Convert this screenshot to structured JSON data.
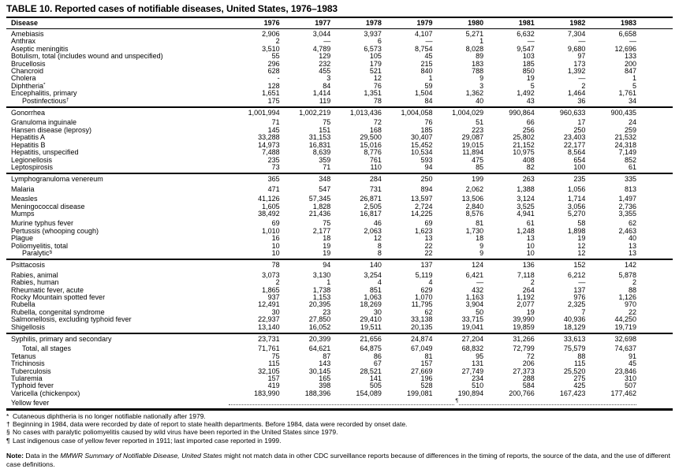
{
  "title": "TABLE 10. Reported cases of notifiable diseases, United States, 1976–1983",
  "table": {
    "columns": [
      "Disease",
      "1976",
      "1977",
      "1978",
      "1979",
      "1980",
      "1981",
      "1982",
      "1983"
    ],
    "groups": [
      {
        "rows": [
          {
            "name": "Amebiasis",
            "values": [
              "2,906",
              "3,044",
              "3,937",
              "4,107",
              "5,271",
              "6,632",
              "7,304",
              "6,658"
            ]
          },
          {
            "name": "Anthrax",
            "values": [
              "2",
              "—",
              "6",
              "—",
              "1",
              "—",
              "—",
              "—"
            ]
          },
          {
            "name": "Aseptic meningitis",
            "values": [
              "3,510",
              "4,789",
              "6,573",
              "8,754",
              "8,028",
              "9,547",
              "9,680",
              "12,696"
            ]
          },
          {
            "name": "Botulism, total (includes wound and unspecified)",
            "values": [
              "55",
              "129",
              "105",
              "45",
              "89",
              "103",
              "97",
              "133"
            ]
          },
          {
            "name": "Brucellosis",
            "values": [
              "296",
              "232",
              "179",
              "215",
              "183",
              "185",
              "173",
              "200"
            ]
          },
          {
            "name": "Chancroid",
            "values": [
              "628",
              "455",
              "521",
              "840",
              "788",
              "850",
              "1,392",
              "847"
            ]
          },
          {
            "name": "Cholera",
            "values": [
              "-",
              "3",
              "12",
              "1",
              "9",
              "19",
              "—",
              "1"
            ]
          },
          {
            "name": "Diphtheria",
            "sup": "*",
            "values": [
              "128",
              "84",
              "76",
              "59",
              "3",
              "5",
              "2",
              "5"
            ]
          },
          {
            "name": "Encephalitis, primary",
            "values": [
              "1,651",
              "1,414",
              "1,351",
              "1,504",
              "1,362",
              "1,492",
              "1,464",
              "1,761"
            ]
          },
          {
            "name": "Postinfectious",
            "sup": "†",
            "indent": true,
            "values": [
              "175",
              "119",
              "78",
              "84",
              "40",
              "43",
              "36",
              "34"
            ]
          }
        ]
      },
      {
        "rows": [
          {
            "name": "Gonorrhea",
            "values": [
              "1,001,994",
              "1,002,219",
              "1,013,436",
              "1,004,058",
              "1,004,029",
              "990,864",
              "960,633",
              "900,435"
            ]
          },
          {
            "name": "Granuloma inguinale",
            "gap": true,
            "values": [
              "71",
              "75",
              "72",
              "76",
              "51",
              "66",
              "17",
              "24"
            ]
          },
          {
            "name": "Hansen disease (leprosy)",
            "values": [
              "145",
              "151",
              "168",
              "185",
              "223",
              "256",
              "250",
              "259"
            ]
          },
          {
            "name": "Hepatitis A",
            "values": [
              "33,288",
              "31,153",
              "29,500",
              "30,407",
              "29,087",
              "25,802",
              "23,403",
              "21,532"
            ]
          },
          {
            "name": "Hepatitis B",
            "values": [
              "14,973",
              "16,831",
              "15,016",
              "15,452",
              "19,015",
              "21,152",
              "22,177",
              "24,318"
            ]
          },
          {
            "name": "Hepatitis, unspecified",
            "values": [
              "7,488",
              "8,639",
              "8,776",
              "10,534",
              "11,894",
              "10,975",
              "8,564",
              "7,149"
            ]
          },
          {
            "name": "Legionellosis",
            "values": [
              "235",
              "359",
              "761",
              "593",
              "475",
              "408",
              "654",
              "852"
            ]
          },
          {
            "name": "Leptospirosis",
            "values": [
              "73",
              "71",
              "110",
              "94",
              "85",
              "82",
              "100",
              "61"
            ]
          }
        ]
      },
      {
        "rows": [
          {
            "name": "Lymphogranuloma venereum",
            "values": [
              "365",
              "348",
              "284",
              "250",
              "199",
              "263",
              "235",
              "335"
            ]
          },
          {
            "name": "Malaria",
            "gap": true,
            "values": [
              "471",
              "547",
              "731",
              "894",
              "2,062",
              "1,388",
              "1,056",
              "813"
            ]
          },
          {
            "name": "Measles",
            "gap": true,
            "values": [
              "41,126",
              "57,345",
              "26,871",
              "13,597",
              "13,506",
              "3,124",
              "1,714",
              "1,497"
            ]
          },
          {
            "name": "Meningococcal disease",
            "values": [
              "1,605",
              "1,828",
              "2,505",
              "2,724",
              "2,840",
              "3,525",
              "3,056",
              "2,736"
            ]
          },
          {
            "name": "Mumps",
            "values": [
              "38,492",
              "21,436",
              "16,817",
              "14,225",
              "8,576",
              "4,941",
              "5,270",
              "3,355"
            ]
          },
          {
            "name": "Murine typhus fever",
            "gap": true,
            "values": [
              "69",
              "75",
              "46",
              "69",
              "81",
              "61",
              "58",
              "62"
            ]
          },
          {
            "name": "Pertussis (whooping cough)",
            "values": [
              "1,010",
              "2,177",
              "2,063",
              "1,623",
              "1,730",
              "1,248",
              "1,898",
              "2,463"
            ]
          },
          {
            "name": "Plague",
            "values": [
              "16",
              "18",
              "12",
              "13",
              "18",
              "13",
              "19",
              "40"
            ]
          },
          {
            "name": "Poliomyelitis, total",
            "values": [
              "10",
              "19",
              "8",
              "22",
              "9",
              "10",
              "12",
              "13"
            ]
          },
          {
            "name": "Paralytic",
            "sup": "§",
            "indent": true,
            "values": [
              "10",
              "19",
              "8",
              "22",
              "9",
              "10",
              "12",
              "13"
            ]
          }
        ]
      },
      {
        "rows": [
          {
            "name": "Psittacosis",
            "values": [
              "78",
              "94",
              "140",
              "137",
              "124",
              "136",
              "152",
              "142"
            ]
          },
          {
            "name": "Rabies, animal",
            "gap": true,
            "values": [
              "3,073",
              "3,130",
              "3,254",
              "5,119",
              "6,421",
              "7,118",
              "6,212",
              "5,878"
            ]
          },
          {
            "name": "Rabies, human",
            "values": [
              "2",
              "1",
              "4",
              "4",
              "—",
              "2",
              "—",
              "2"
            ]
          },
          {
            "name": "Rheumatic fever, acute",
            "values": [
              "1,865",
              "1,738",
              "851",
              "629",
              "432",
              "264",
              "137",
              "88"
            ]
          },
          {
            "name": "Rocky Mountain spotted fever",
            "values": [
              "937",
              "1,153",
              "1,063",
              "1,070",
              "1,163",
              "1,192",
              "976",
              "1,126"
            ]
          },
          {
            "name": "Rubella",
            "values": [
              "12,491",
              "20,395",
              "18,269",
              "11,795",
              "3,904",
              "2,077",
              "2,325",
              "970"
            ]
          },
          {
            "name": "Rubella, congenital syndrome",
            "values": [
              "30",
              "23",
              "30",
              "62",
              "50",
              "19",
              "7",
              "22"
            ]
          },
          {
            "name": "Salmonellosis, excluding typhoid fever",
            "values": [
              "22,937",
              "27,850",
              "29,410",
              "33,138",
              "33,715",
              "39,990",
              "40,936",
              "44,250"
            ]
          },
          {
            "name": "Shigellosis",
            "values": [
              "13,140",
              "16,052",
              "19,511",
              "20,135",
              "19,041",
              "19,859",
              "18,129",
              "19,719"
            ]
          }
        ]
      },
      {
        "rows": [
          {
            "name": "Syphilis, primary and secondary",
            "values": [
              "23,731",
              "20,399",
              "21,656",
              "24,874",
              "27,204",
              "31,266",
              "33,613",
              "32,698"
            ]
          },
          {
            "name": "Total, all stages",
            "indent": true,
            "gap": true,
            "values": [
              "71,761",
              "64,621",
              "64,875",
              "67,049",
              "68,832",
              "72,799",
              "75,579",
              "74,637"
            ]
          },
          {
            "name": "Tetanus",
            "values": [
              "75",
              "87",
              "86",
              "81",
              "95",
              "72",
              "88",
              "91"
            ]
          },
          {
            "name": "Trichinosis",
            "values": [
              "115",
              "143",
              "67",
              "157",
              "131",
              "206",
              "115",
              "45"
            ]
          },
          {
            "name": "Tuberculosis",
            "values": [
              "32,105",
              "30,145",
              "28,521",
              "27,669",
              "27,749",
              "27,373",
              "25,520",
              "23,846"
            ]
          },
          {
            "name": "Tularemia",
            "values": [
              "157",
              "165",
              "141",
              "196",
              "234",
              "288",
              "275",
              "310"
            ]
          },
          {
            "name": "Typhoid fever",
            "values": [
              "419",
              "398",
              "505",
              "528",
              "510",
              "584",
              "425",
              "507"
            ]
          },
          {
            "name": "Varicella (chickenpox)",
            "values": [
              "183,990",
              "188,396",
              "154,089",
              "199,081",
              "190,894",
              "200,766",
              "167,423",
              "177,462"
            ]
          },
          {
            "name": "Yellow fever",
            "dotted": true,
            "leader_mark": "¶"
          }
        ]
      }
    ]
  },
  "footnotes": [
    {
      "mark": "*",
      "text": "Cutaneous diphtheria is no longer notifiable nationally after 1979."
    },
    {
      "mark": "†",
      "text": "Beginning in 1984, data were recorded by date of report to state health departments. Before 1984, data were recorded by onset date."
    },
    {
      "mark": "§",
      "text": "No cases with paralytic poliomyelitis caused by wild virus have been reported in the United States since 1979."
    },
    {
      "mark": "¶",
      "text": "Last indigenous case of yellow fever reported in 1911; last imported case reported in 1999."
    }
  ],
  "note": {
    "label": "Note:",
    "pre": " Data in the ",
    "italic": "MMWR Summary of Notifiable Disease, United States",
    "post": " might not match data in other CDC surveillance reports because of differences in the timing of reports, the source of the data, and the use of different case definitions."
  }
}
